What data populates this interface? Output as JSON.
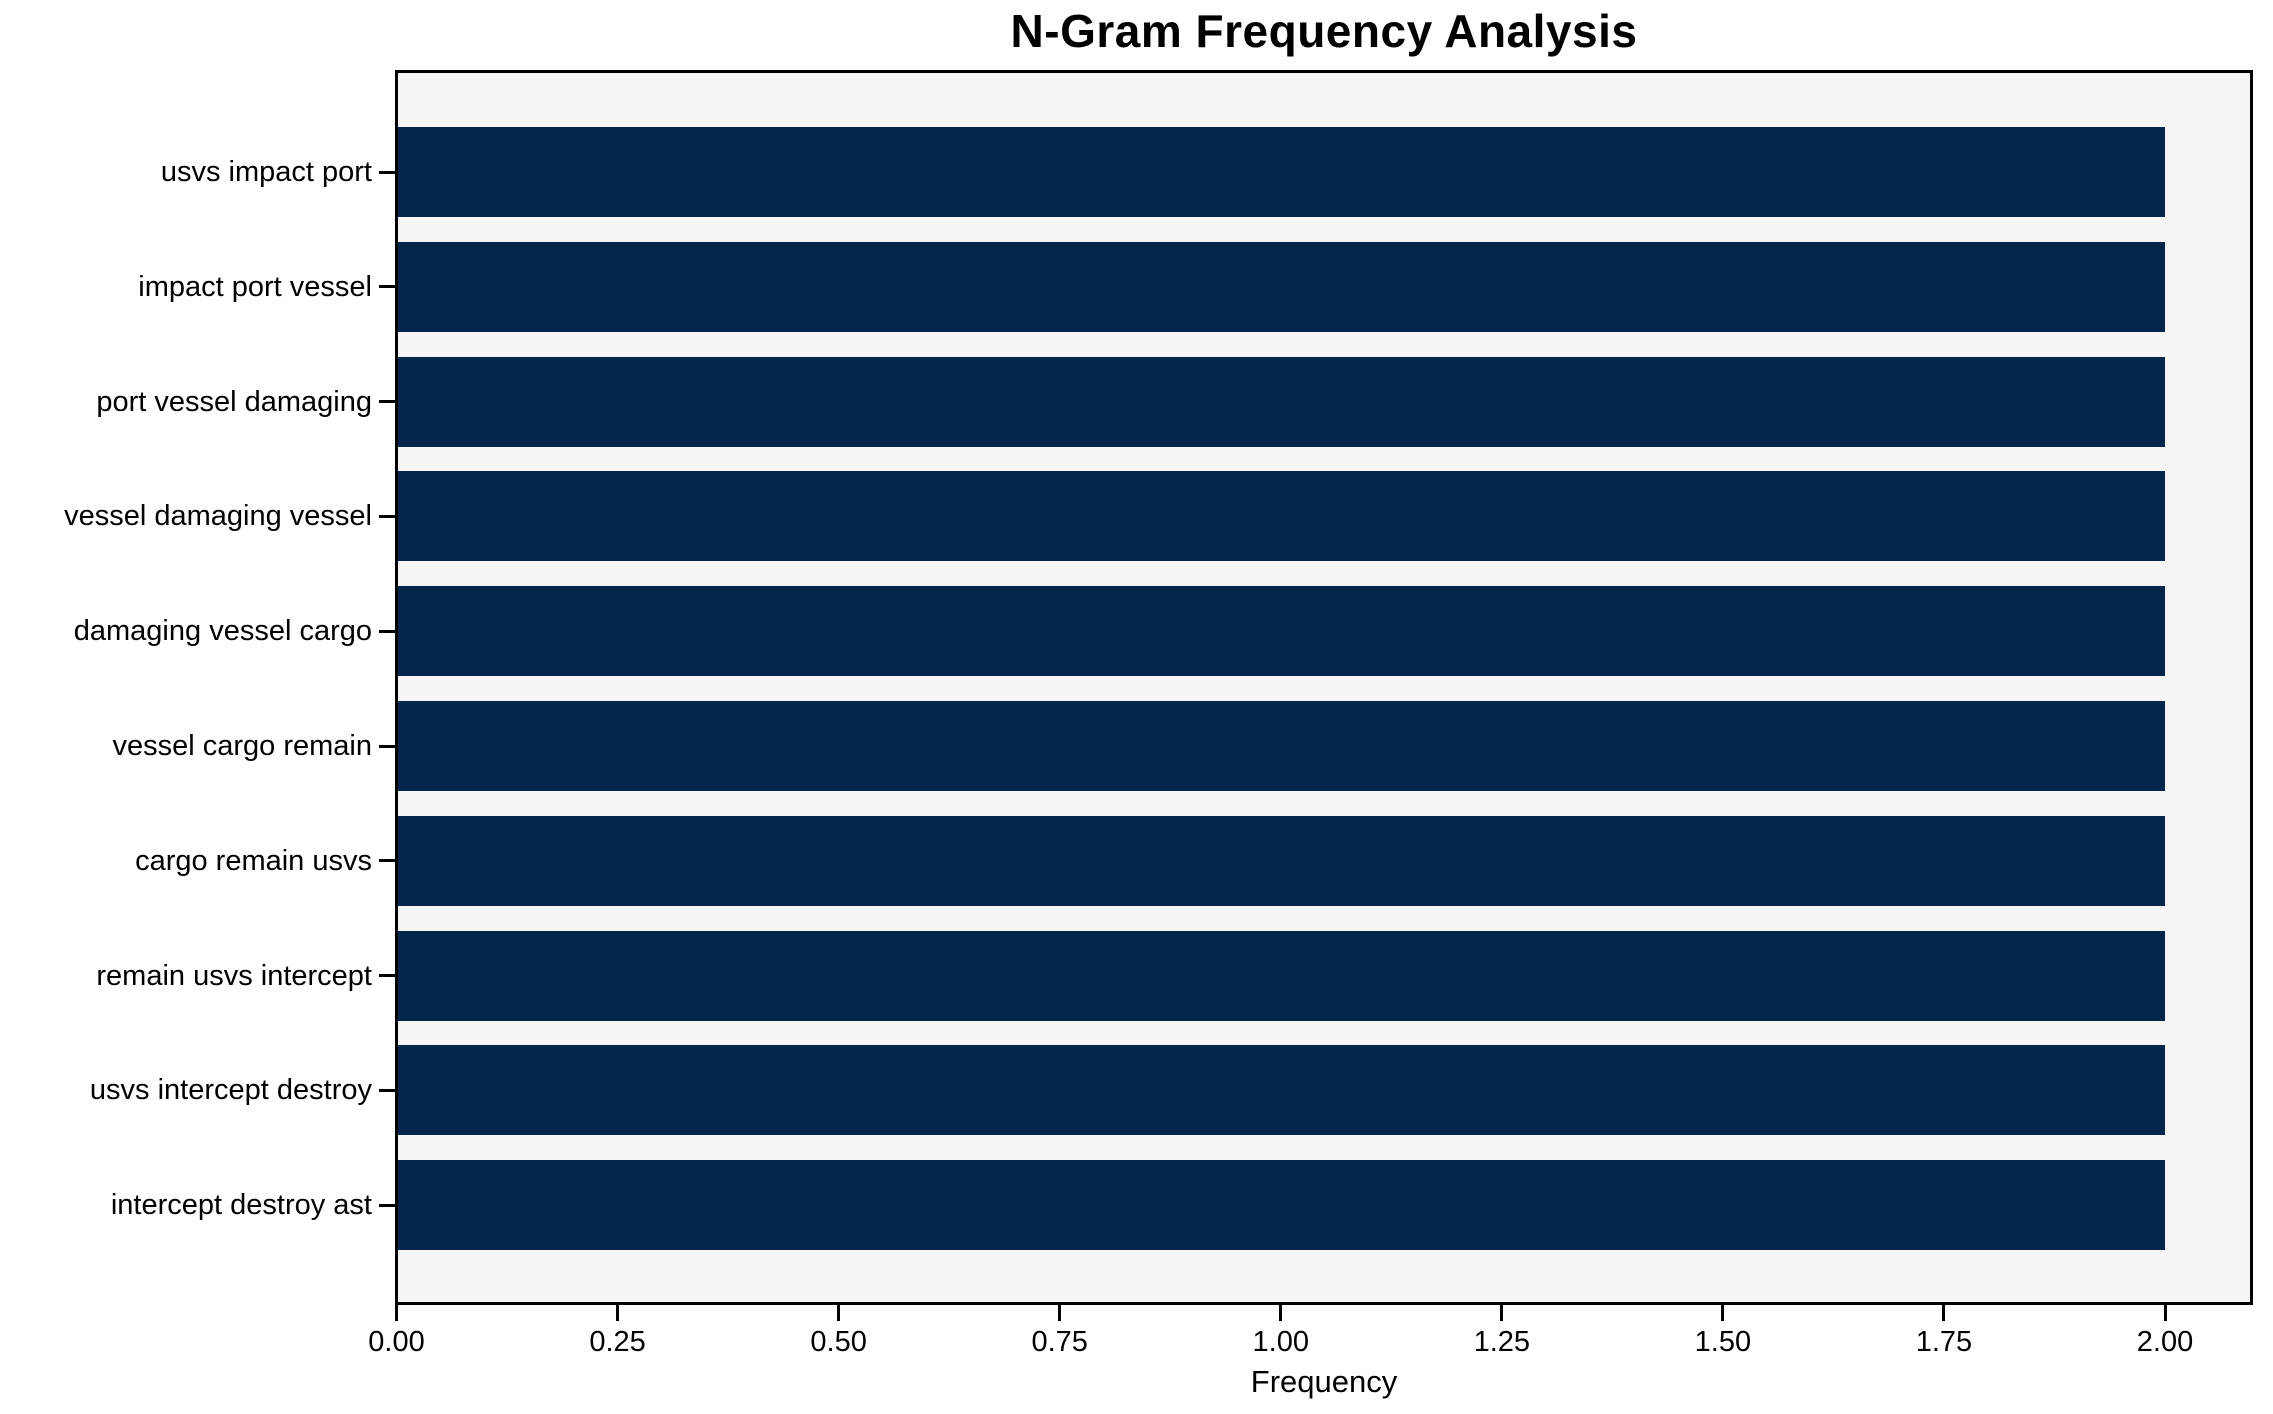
{
  "title": "N-Gram Frequency Analysis",
  "chart_data": {
    "type": "bar",
    "orientation": "horizontal",
    "title": "N-Gram Frequency Analysis",
    "xlabel": "Frequency",
    "ylabel": "",
    "categories": [
      "usvs impact port",
      "impact port vessel",
      "port vessel damaging",
      "vessel damaging vessel",
      "damaging vessel cargo",
      "vessel cargo remain",
      "cargo remain usvs",
      "remain usvs intercept",
      "usvs intercept destroy",
      "intercept destroy ast"
    ],
    "values": [
      2.0,
      2.0,
      2.0,
      2.0,
      2.0,
      2.0,
      2.0,
      2.0,
      2.0,
      2.0
    ],
    "xlim": [
      0,
      2.1
    ],
    "xticks": [
      "0.00",
      "0.25",
      "0.50",
      "0.75",
      "1.00",
      "1.25",
      "1.50",
      "1.75",
      "2.00"
    ],
    "xtick_values": [
      0,
      0.25,
      0.5,
      0.75,
      1.0,
      1.25,
      1.5,
      1.75,
      2.0
    ],
    "grid": false,
    "legend": null,
    "colors": {
      "bar": "#03254c",
      "plot_background": "#f5f5f5",
      "figure_background": "#ffffff",
      "spine": "#000000",
      "text": "#000000"
    }
  }
}
